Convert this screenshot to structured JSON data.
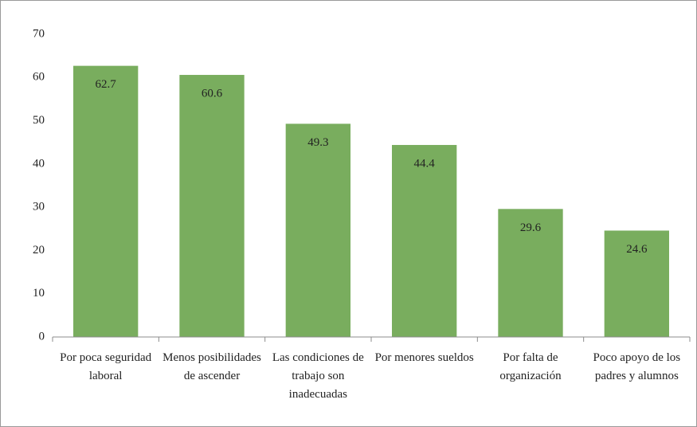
{
  "chart_data": {
    "type": "bar",
    "categories": [
      "Por poca seguridad laboral",
      "Menos posibilidades de ascender",
      "Las condiciones de trabajo son inadecuadas",
      "Por menores sueldos",
      "Por falta de organización",
      "Poco apoyo de los padres y alumnos"
    ],
    "values": [
      62.7,
      60.6,
      49.3,
      44.4,
      29.6,
      24.6
    ],
    "color": "#79ad5e",
    "ylim": [
      0,
      70
    ],
    "yticks": [
      0,
      10,
      20,
      30,
      40,
      50,
      60,
      70
    ],
    "grid": false
  }
}
